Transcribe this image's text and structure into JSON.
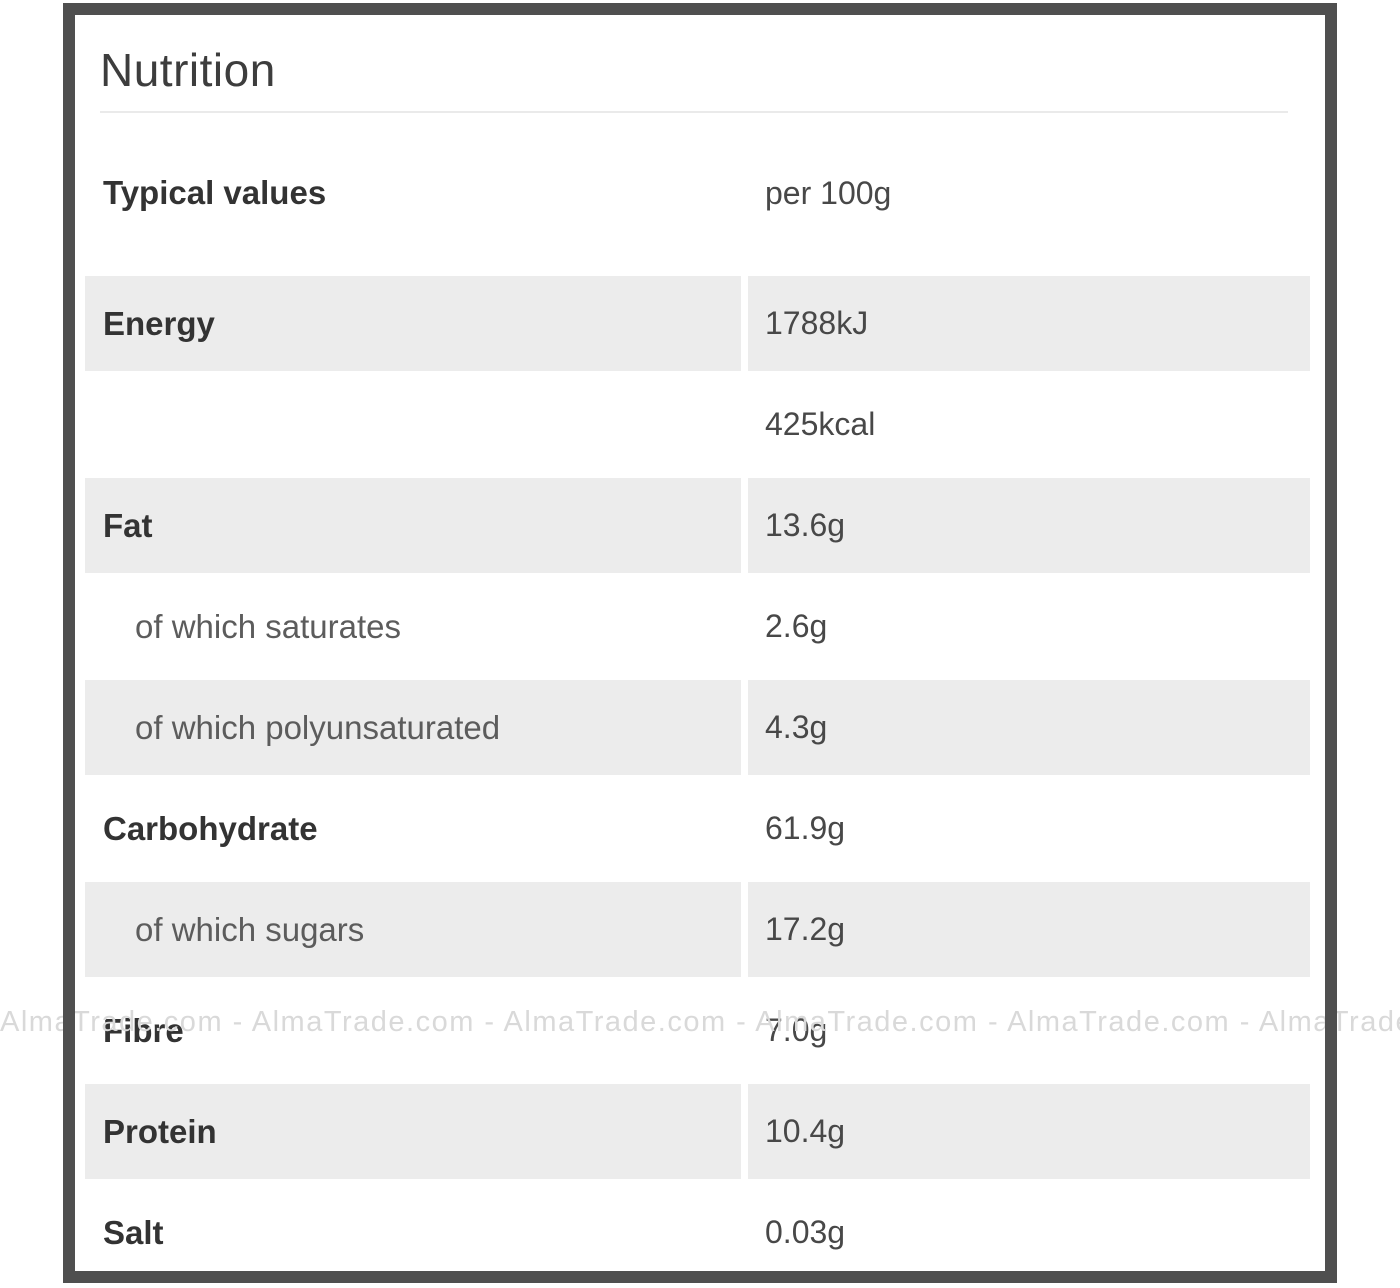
{
  "page": {
    "title": "Nutrition"
  },
  "table": {
    "header": {
      "label": "Typical values",
      "value": "per 100g"
    },
    "rows": [
      {
        "label": "Energy",
        "value": "1788kJ",
        "sub_item": false
      },
      {
        "label": "",
        "value": "425kcal",
        "sub_item": false
      },
      {
        "label": "Fat",
        "value": "13.6g",
        "sub_item": false
      },
      {
        "label": "of which saturates",
        "value": "2.6g",
        "sub_item": true
      },
      {
        "label": "of which polyunsaturated",
        "value": "4.3g",
        "sub_item": true
      },
      {
        "label": "Carbohydrate",
        "value": "61.9g",
        "sub_item": false
      },
      {
        "label": "of which sugars",
        "value": "17.2g",
        "sub_item": true
      },
      {
        "label": "Fibre",
        "value": "7.0g",
        "sub_item": false
      },
      {
        "label": "Protein",
        "value": "10.4g",
        "sub_item": false
      },
      {
        "label": "Salt",
        "value": "0.03g",
        "sub_item": false
      }
    ]
  },
  "watermark": {
    "text": "AlmaTrade.com - AlmaTrade.com - AlmaTrade.com - AlmaTrade.com - AlmaTrade.com - AlmaTrade.com - AlmaTrade.com - AlmaTrade.com -"
  },
  "colors": {
    "frame_border": "#4f4f4f",
    "row_shaded": "#ececec",
    "title_text": "#3d3d3d",
    "header_text": "#2d2d2d",
    "label_text": "#333333",
    "sublabel_text": "#5c5c5c",
    "value_text": "#484848",
    "divider": "#eaeaea",
    "watermark_text": "#d9d9d9"
  }
}
